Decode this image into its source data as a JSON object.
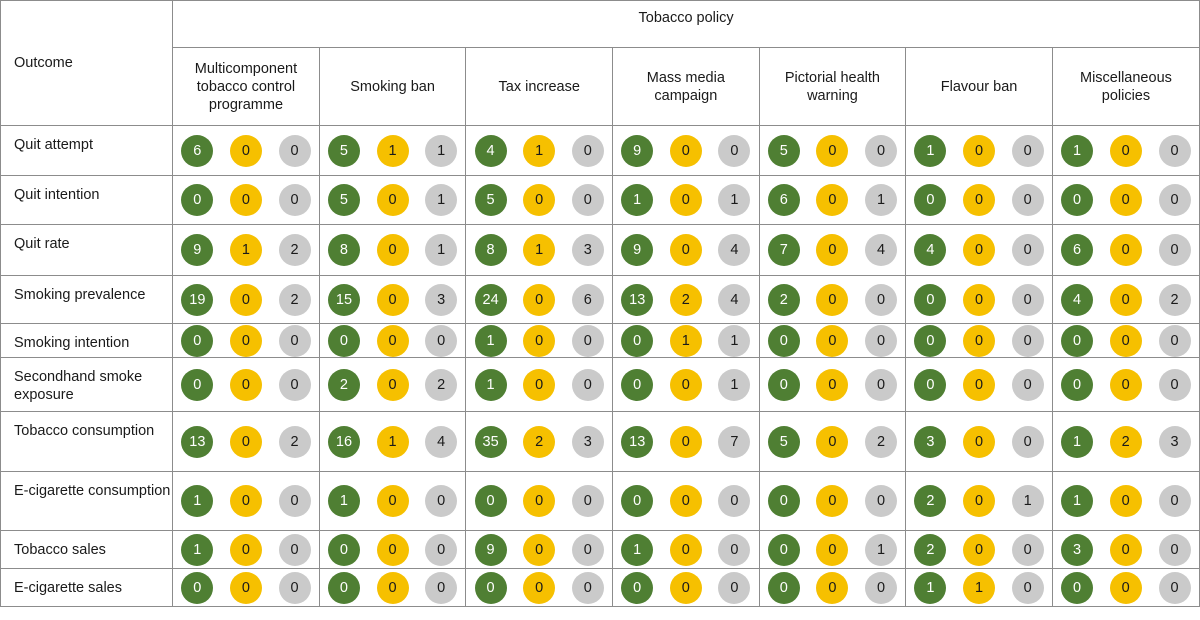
{
  "header": {
    "outcome_label": "Outcome",
    "policy_group_label": "Tobacco policy",
    "policies": [
      "Multicomponent tobacco control programme",
      "Smoking ban",
      "Tax increase",
      "Mass media campaign",
      "Pictorial health warning",
      "Flavour ban",
      "Miscellaneous policies"
    ]
  },
  "colors": {
    "green": "#4f7f33",
    "yellow": "#f6c000",
    "grey": "#cacaca"
  },
  "rows": [
    {
      "label": "Quit attempt",
      "values": [
        [
          6,
          0,
          0
        ],
        [
          5,
          1,
          1
        ],
        [
          4,
          1,
          0
        ],
        [
          9,
          0,
          0
        ],
        [
          5,
          0,
          0
        ],
        [
          1,
          0,
          0
        ],
        [
          1,
          0,
          0
        ]
      ]
    },
    {
      "label": "Quit intention",
      "values": [
        [
          0,
          0,
          0
        ],
        [
          5,
          0,
          1
        ],
        [
          5,
          0,
          0
        ],
        [
          1,
          0,
          1
        ],
        [
          6,
          0,
          1
        ],
        [
          0,
          0,
          0
        ],
        [
          0,
          0,
          0
        ]
      ]
    },
    {
      "label": "Quit rate",
      "values": [
        [
          9,
          1,
          2
        ],
        [
          8,
          0,
          1
        ],
        [
          8,
          1,
          3
        ],
        [
          9,
          0,
          4
        ],
        [
          7,
          0,
          4
        ],
        [
          4,
          0,
          0
        ],
        [
          6,
          0,
          0
        ]
      ]
    },
    {
      "label": "Smoking prevalence",
      "values": [
        [
          19,
          0,
          2
        ],
        [
          15,
          0,
          3
        ],
        [
          24,
          0,
          6
        ],
        [
          13,
          2,
          4
        ],
        [
          2,
          0,
          0
        ],
        [
          0,
          0,
          0
        ],
        [
          4,
          0,
          2
        ]
      ]
    },
    {
      "label": "Smoking intention",
      "values": [
        [
          0,
          0,
          0
        ],
        [
          0,
          0,
          0
        ],
        [
          1,
          0,
          0
        ],
        [
          0,
          1,
          1
        ],
        [
          0,
          0,
          0
        ],
        [
          0,
          0,
          0
        ],
        [
          0,
          0,
          0
        ]
      ]
    },
    {
      "label": "Secondhand smoke exposure",
      "values": [
        [
          0,
          0,
          0
        ],
        [
          2,
          0,
          2
        ],
        [
          1,
          0,
          0
        ],
        [
          0,
          0,
          1
        ],
        [
          0,
          0,
          0
        ],
        [
          0,
          0,
          0
        ],
        [
          0,
          0,
          0
        ]
      ]
    },
    {
      "label": "Tobacco consumption",
      "values": [
        [
          13,
          0,
          2
        ],
        [
          16,
          1,
          4
        ],
        [
          35,
          2,
          3
        ],
        [
          13,
          0,
          7
        ],
        [
          5,
          0,
          2
        ],
        [
          3,
          0,
          0
        ],
        [
          1,
          2,
          3
        ]
      ]
    },
    {
      "label": "E-cigarette consumption",
      "values": [
        [
          1,
          0,
          0
        ],
        [
          1,
          0,
          0
        ],
        [
          0,
          0,
          0
        ],
        [
          0,
          0,
          0
        ],
        [
          0,
          0,
          0
        ],
        [
          2,
          0,
          1
        ],
        [
          1,
          0,
          0
        ]
      ]
    },
    {
      "label": "Tobacco sales",
      "values": [
        [
          1,
          0,
          0
        ],
        [
          0,
          0,
          0
        ],
        [
          9,
          0,
          0
        ],
        [
          1,
          0,
          0
        ],
        [
          0,
          0,
          1
        ],
        [
          2,
          0,
          0
        ],
        [
          3,
          0,
          0
        ]
      ]
    },
    {
      "label": "E-cigarette sales",
      "values": [
        [
          0,
          0,
          0
        ],
        [
          0,
          0,
          0
        ],
        [
          0,
          0,
          0
        ],
        [
          0,
          0,
          0
        ],
        [
          0,
          0,
          0
        ],
        [
          1,
          1,
          0
        ],
        [
          0,
          0,
          0
        ]
      ]
    }
  ]
}
